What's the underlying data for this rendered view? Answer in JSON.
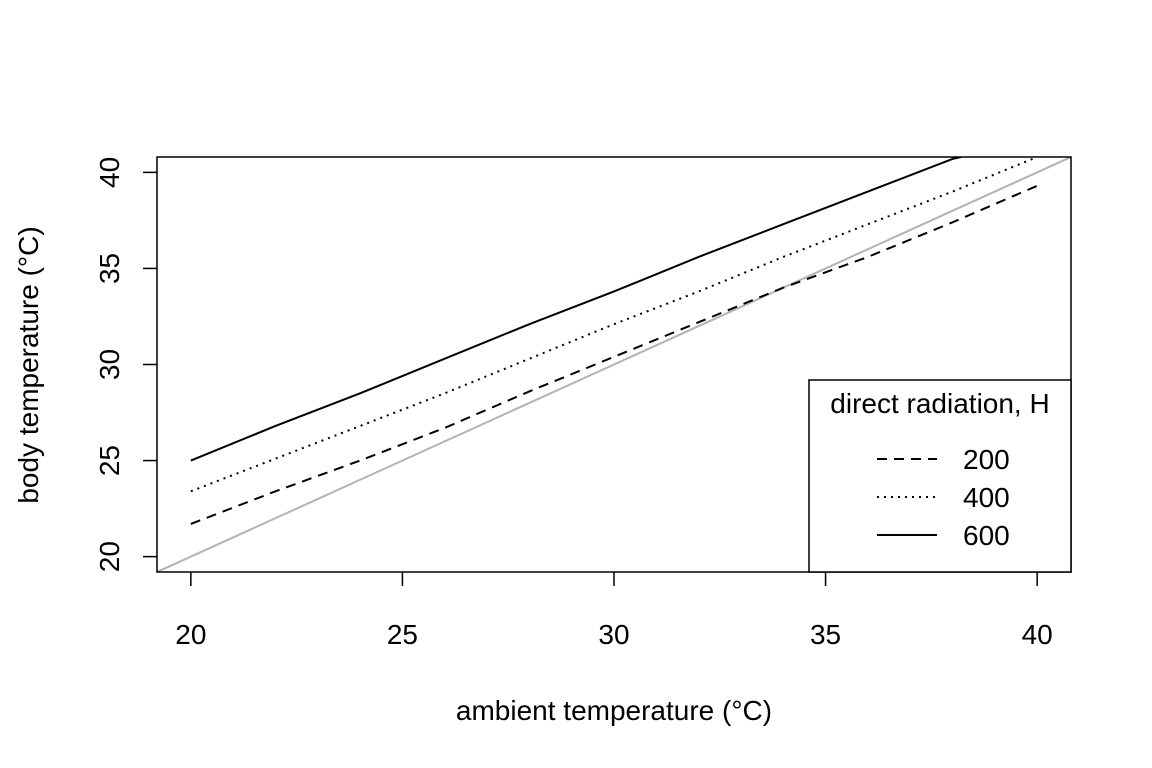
{
  "chart_data": {
    "type": "line",
    "title": "",
    "xlabel": "ambient temperature (°C)",
    "ylabel": "body temperature (°C)",
    "xlim": [
      19.2,
      40.8
    ],
    "ylim": [
      19.2,
      40.8
    ],
    "xticks": [
      20,
      25,
      30,
      35,
      40
    ],
    "yticks": [
      20,
      25,
      30,
      35,
      40
    ],
    "grid": false,
    "legend": {
      "title": "direct radiation, H",
      "position": "bottom-right"
    },
    "reference_line": {
      "description": "y = x",
      "color": "#b3b3b3"
    },
    "series": [
      {
        "name": "200",
        "line_style": "dashed",
        "x": [
          20,
          22,
          24,
          26,
          28,
          30,
          32,
          34,
          36,
          38,
          40
        ],
        "y": [
          21.7,
          23.4,
          25.0,
          26.7,
          28.6,
          30.4,
          32.2,
          34.0,
          35.6,
          37.4,
          39.3
        ]
      },
      {
        "name": "400",
        "line_style": "dotted",
        "x": [
          20,
          22,
          24,
          26,
          28,
          30,
          32,
          34,
          36,
          38,
          40
        ],
        "y": [
          23.4,
          25.1,
          26.8,
          28.5,
          30.3,
          32.1,
          33.8,
          35.6,
          37.3,
          39.0,
          40.8
        ]
      },
      {
        "name": "600",
        "line_style": "solid",
        "x": [
          20,
          22,
          24,
          26,
          28,
          30,
          32,
          34,
          36,
          38,
          38.2
        ],
        "y": [
          25.0,
          26.8,
          28.5,
          30.3,
          32.1,
          33.8,
          35.6,
          37.3,
          39.0,
          40.7,
          40.8
        ]
      }
    ]
  }
}
